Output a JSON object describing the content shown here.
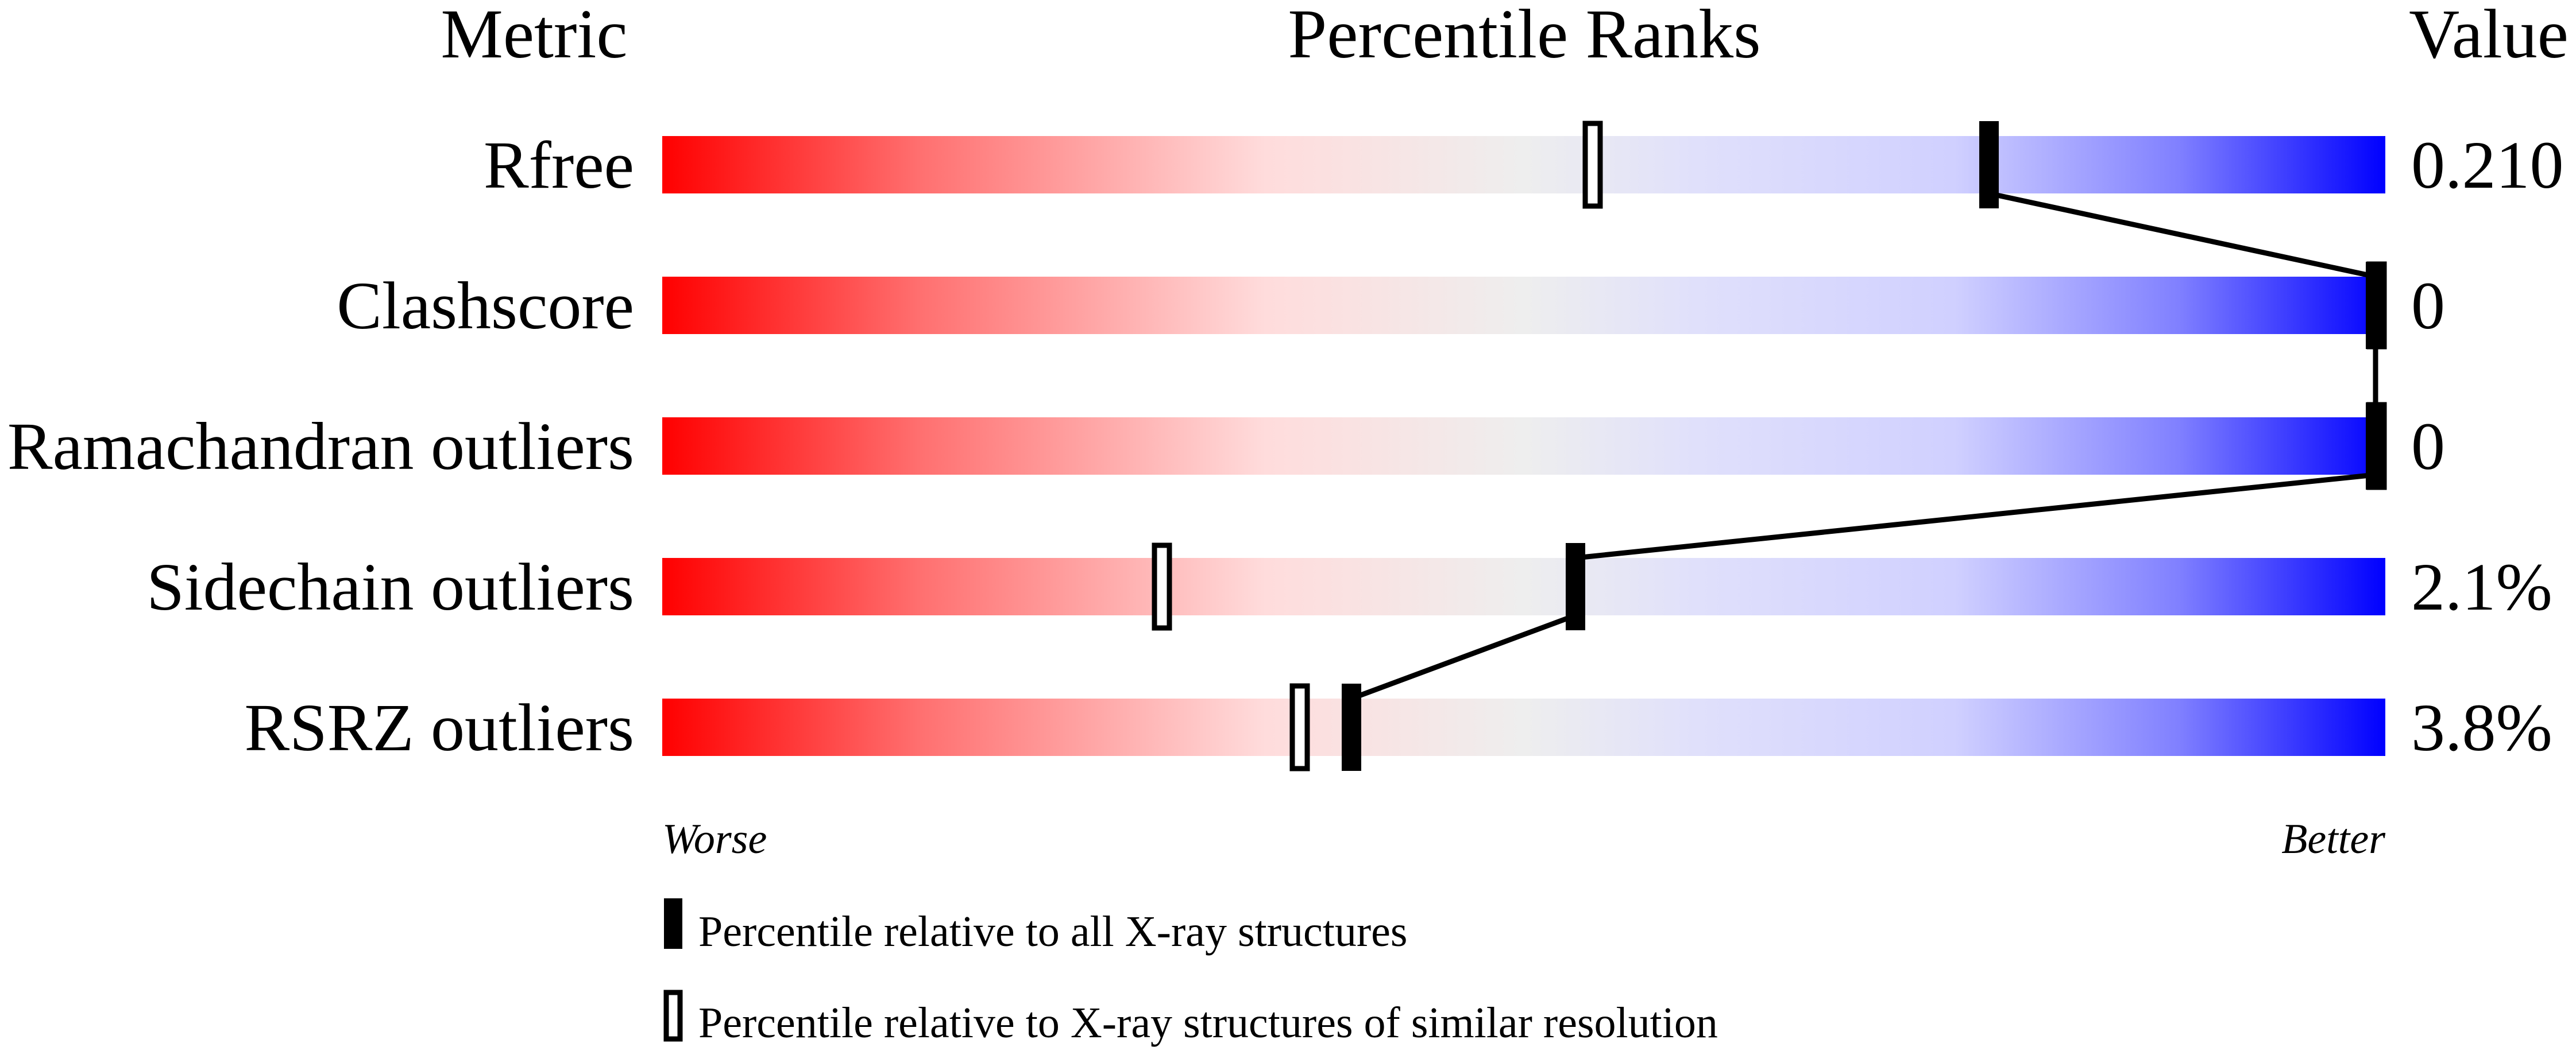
{
  "chart_data": {
    "type": "bar",
    "headers": {
      "metric": "Metric",
      "percentile": "Percentile Ranks",
      "value": "Value"
    },
    "xlim": [
      0,
      100
    ],
    "axis_ends": {
      "left": "Worse",
      "right": "Better"
    },
    "gradient_colors": {
      "worse": "#ff0000",
      "middle": "#eeeeee",
      "better": "#0000ff"
    },
    "rows": [
      {
        "metric": "Rfree",
        "value": "0.210",
        "percentile_all": 77,
        "percentile_similar": 54
      },
      {
        "metric": "Clashscore",
        "value": "0",
        "percentile_all": 100,
        "percentile_similar": 100
      },
      {
        "metric": "Ramachandran outliers",
        "value": "0",
        "percentile_all": 100,
        "percentile_similar": 100
      },
      {
        "metric": "Sidechain outliers",
        "value": "2.1%",
        "percentile_all": 53,
        "percentile_similar": 29
      },
      {
        "metric": "RSRZ outliers",
        "value": "3.8%",
        "percentile_all": 40,
        "percentile_similar": 37
      }
    ],
    "legend": [
      {
        "marker": "filled",
        "label": "Percentile relative to all X-ray structures"
      },
      {
        "marker": "open",
        "label": "Percentile relative to X-ray structures of similar resolution"
      }
    ]
  }
}
